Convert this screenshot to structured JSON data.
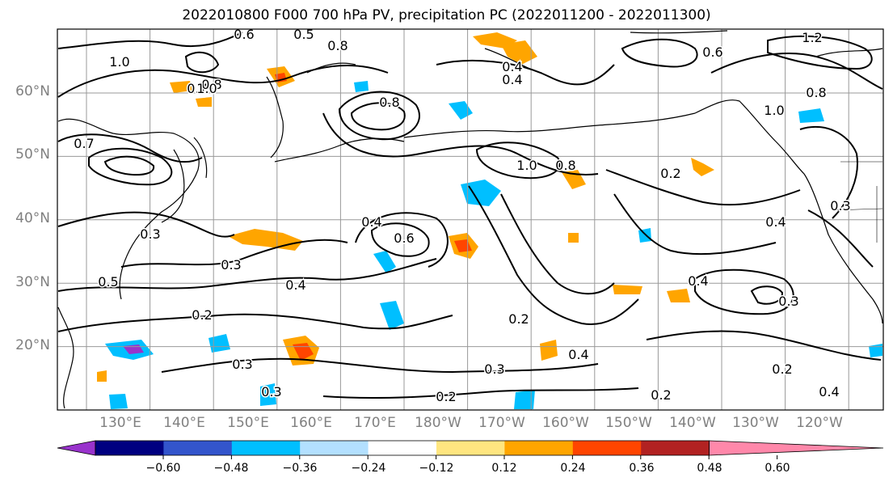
{
  "title": "2022010800 F000 700 hPa PV, precipitation PC (2022011200 - 2022011300)",
  "latitude_labels": [
    "60°N",
    "50°N",
    "40°N",
    "30°N",
    "20°N"
  ],
  "longitude_labels": [
    "130°E",
    "140°E",
    "150°E",
    "160°E",
    "170°E",
    "180°W",
    "170°W",
    "160°W",
    "150°W",
    "140°W",
    "130°W",
    "120°W"
  ],
  "colorbar": {
    "ticks": [
      "−0.60",
      "−0.48",
      "−0.36",
      "−0.24",
      "−0.12",
      "0.12",
      "0.24",
      "0.36",
      "0.48",
      "0.60"
    ],
    "colors": [
      "#9933cc",
      "#000080",
      "#3355cc",
      "#00bfff",
      "#b3e0ff",
      "#ffffff",
      "#ffe680",
      "#ffa500",
      "#ff4500",
      "#b22222",
      "#ff88aa"
    ]
  },
  "contour_labels": [
    "1.0",
    "0.6",
    "0.5",
    "0.8",
    "0.4",
    "1.2",
    "0.7",
    "0.8",
    "0.4",
    "0.8",
    "1.0",
    "0.6",
    "0.7",
    "0.3",
    "0.5",
    "0.4",
    "1.0",
    "0.8",
    "0.3",
    "0.4",
    "0.6",
    "0.2",
    "0.3",
    "0.3",
    "0.2",
    "0.3",
    "0.4",
    "0.2",
    "0.4",
    "0.3",
    "0.2",
    "0.4",
    "0.2",
    "0.2",
    "0.3",
    "0.8",
    "1.0",
    "0.4"
  ],
  "colors": {
    "land": "#000000",
    "grid": "#999999",
    "contour": "#000000"
  }
}
